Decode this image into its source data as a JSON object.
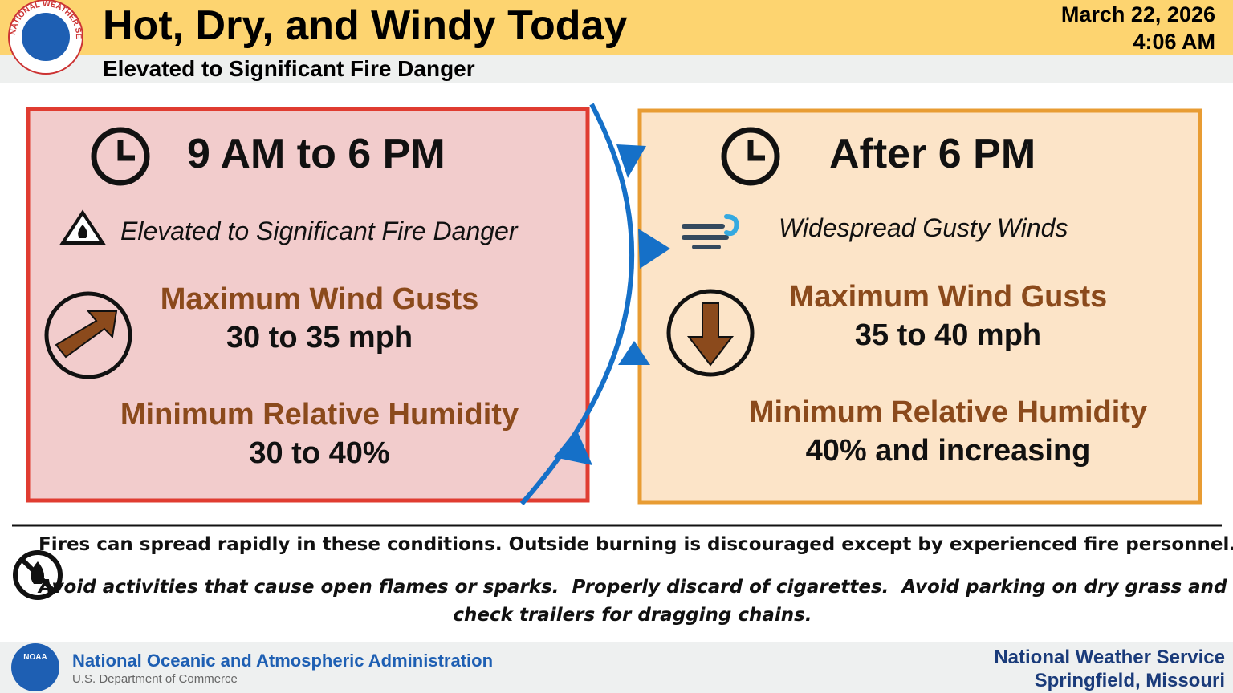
{
  "header": {
    "title": "Hot, Dry, and Windy Today",
    "subtitle": "Elevated to Significant Fire Danger",
    "date": "March 22, 2026",
    "time": "4:06 AM"
  },
  "logos": {
    "nws_ring": "NATIONAL WEATHER SERVICE",
    "noaa": "NOAA"
  },
  "panels": [
    {
      "period": "9 AM to 6 PM",
      "headline": "Elevated to Significant Fire Danger",
      "wind_label": "Maximum Wind Gusts",
      "wind_value": "30 to 35 mph",
      "rh_label": "Minimum Relative Humidity",
      "rh_value": "30 to 40%"
    },
    {
      "period": "After 6 PM",
      "headline": "Widespread Gusty Winds",
      "wind_label": "Maximum Wind Gusts",
      "wind_value": "35 to 40 mph",
      "rh_label": "Minimum Relative Humidity",
      "rh_value": "40% and increasing"
    }
  ],
  "notes": [
    "Fires can spread rapidly in these conditions. Outside burning is discouraged except by experienced fire personnel.",
    [
      "Avoid activities that cause open flames or sparks.  Properly discard of cigarettes.  Avoid parking on dry grass and",
      "check trailers for dragging chains."
    ]
  ],
  "footer": {
    "agency": "National Oceanic and Atmospheric Administration",
    "department": "U.S. Department of Commerce",
    "office": "National Weather Service",
    "location": "Springfield, Missouri"
  }
}
